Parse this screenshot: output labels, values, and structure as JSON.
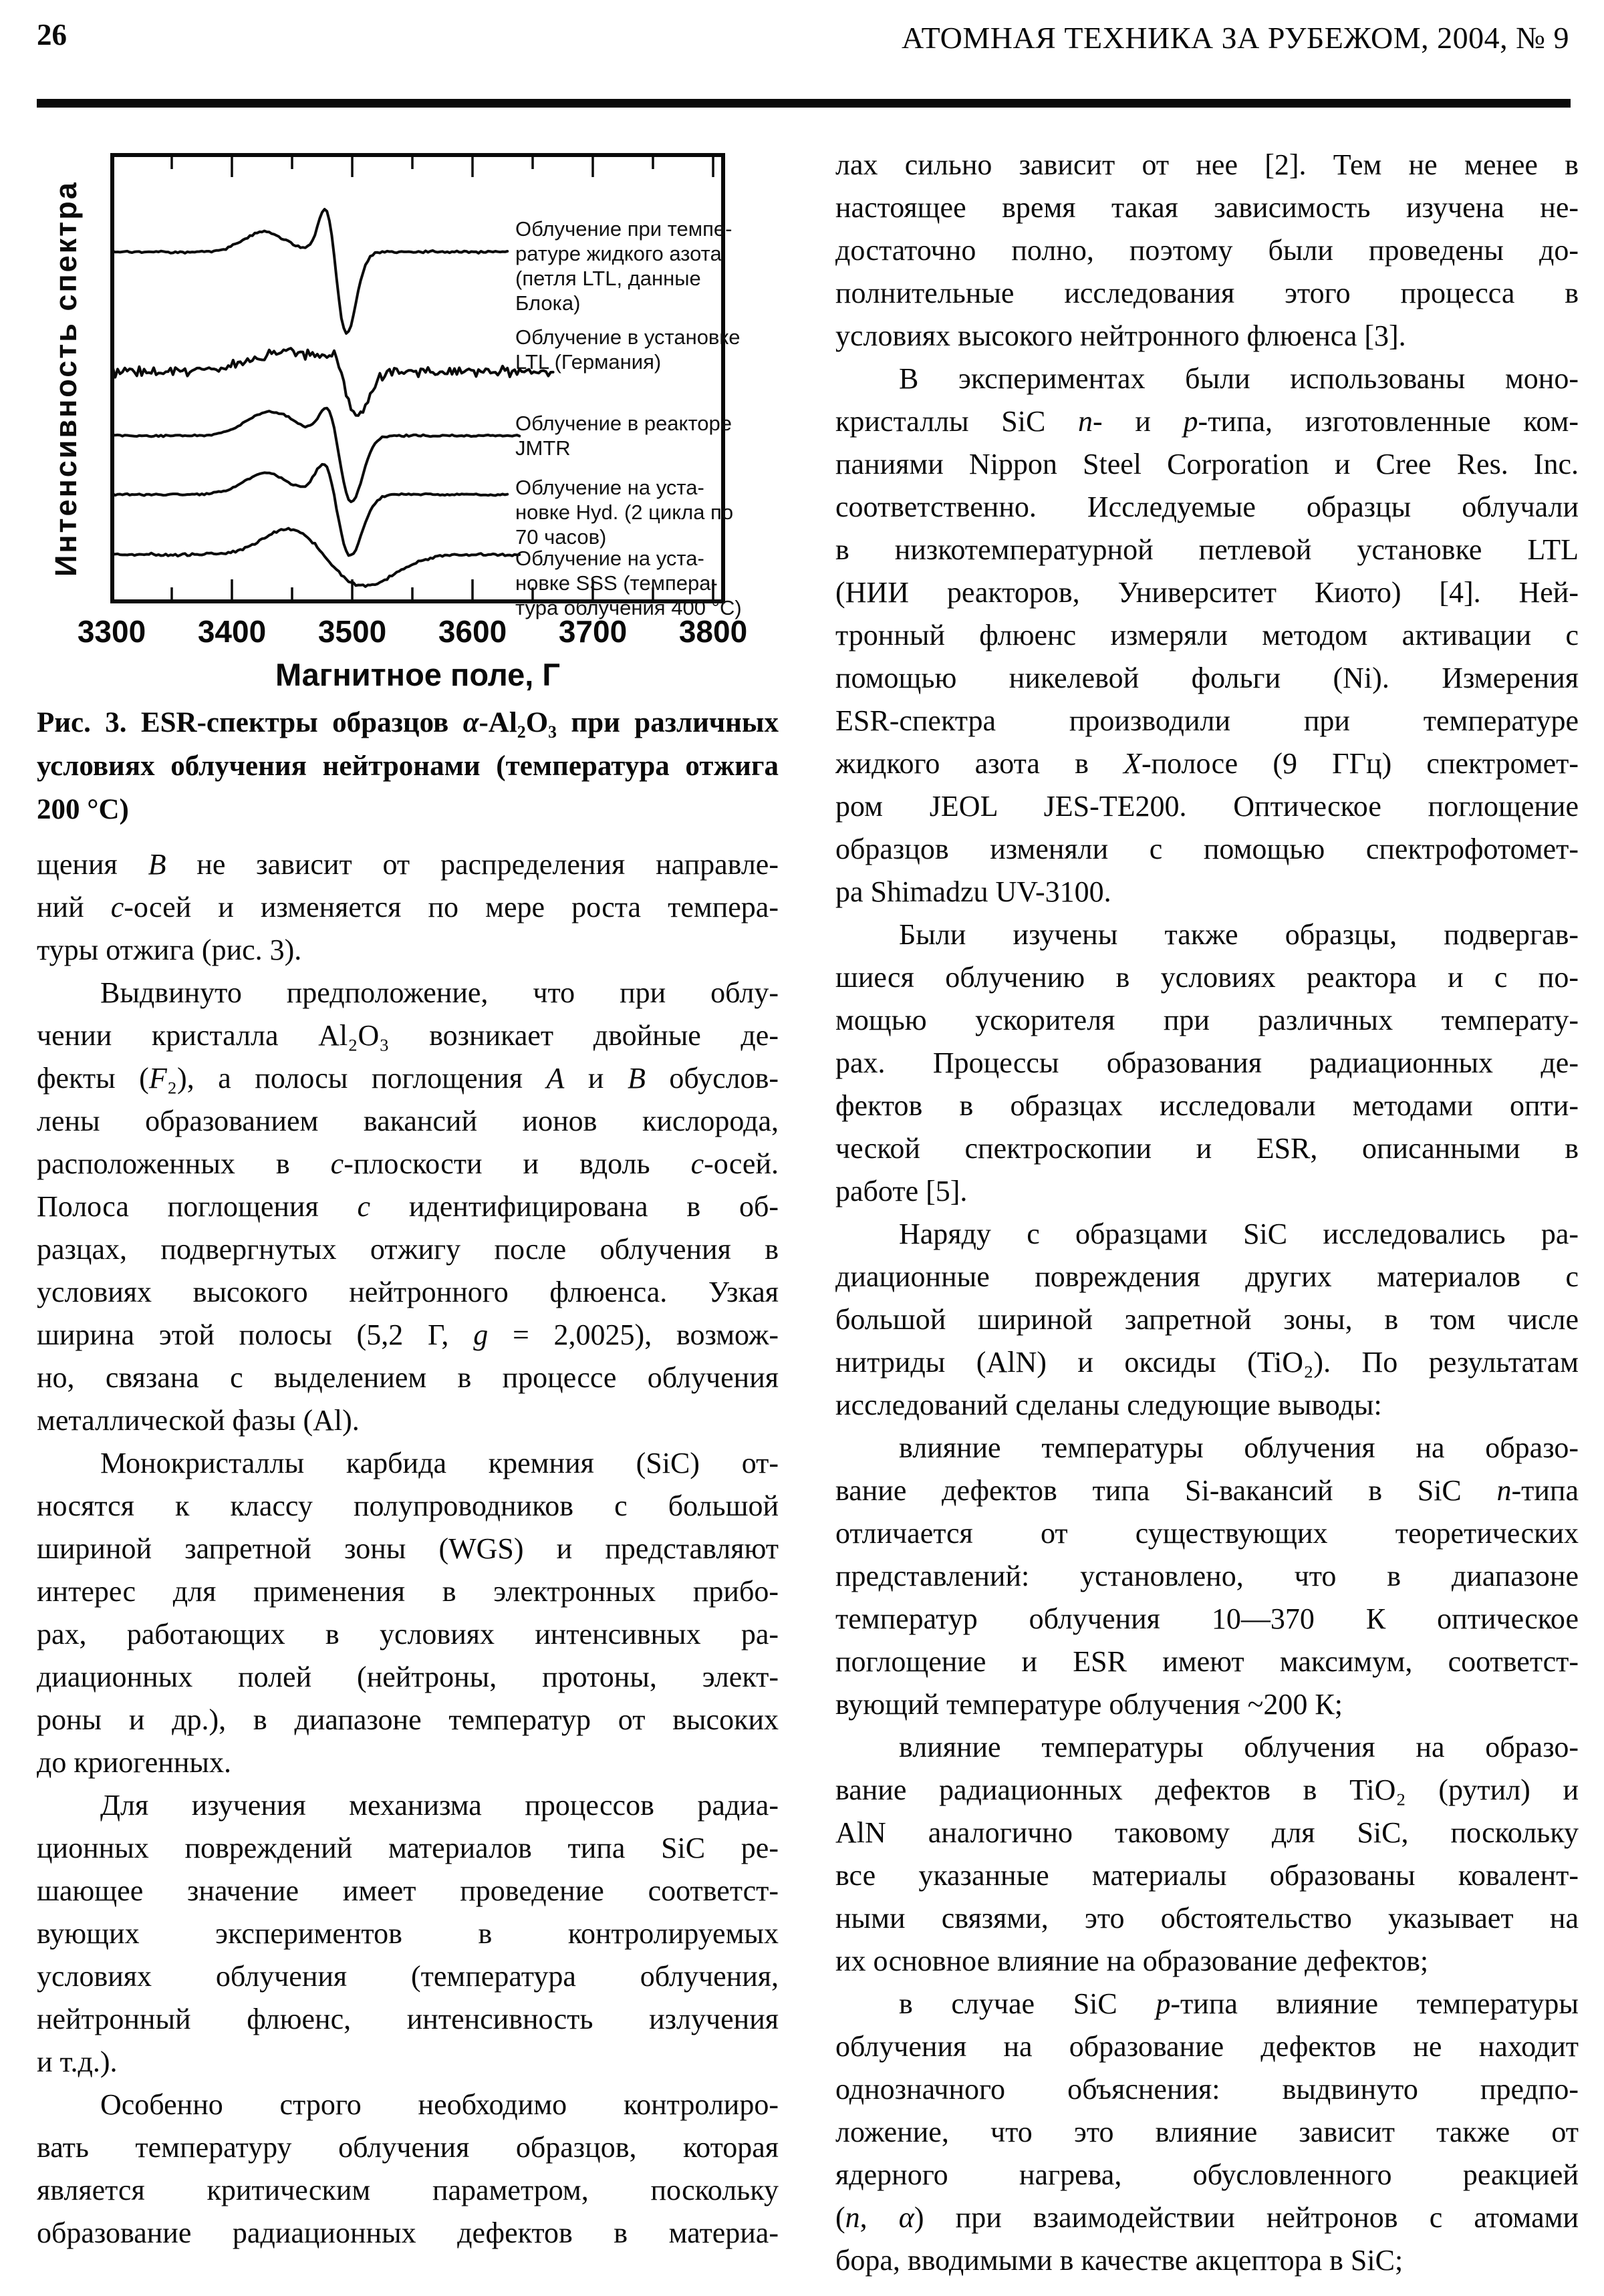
{
  "header": {
    "page_number": "26",
    "journal": "АТОМНАЯ ТЕХНИКА ЗА РУБЕЖОМ, 2004, № 9"
  },
  "figure": {
    "y_axis_label": "Интенсивность спектра",
    "x_axis_label": "Магнитное поле, Г",
    "caption_lines": [
      "Рис. 3. ESR-спектры образцов *α*-Al₂O₃ при различных",
      "условиях облучения нейтронами (температура отжига",
      "200 °C)"
    ]
  },
  "chart_data": {
    "type": "line",
    "title": "",
    "xlabel": "Магнитное поле, Г",
    "ylabel": "Интенсивность спектра",
    "xlim": [
      3300,
      3800
    ],
    "x_tick_labels": [
      "3300",
      "3400",
      "3500",
      "3600",
      "3700",
      "3800"
    ],
    "minor_tick_step": 50,
    "grid": false,
    "legend_position": "right-inside",
    "series": [
      {
        "name": "Облучение при температуре жидкого азота (петля LTL, данные Блока)",
        "label_lines": [
          "Облучение при темпе-",
          "ратуре жидкого азота",
          "(петля LTL, данные",
          "Блока)"
        ],
        "baseline": 152,
        "bump": {
          "center": 3427,
          "width": 17,
          "amp": 30
        },
        "peak": {
          "center": 3487,
          "width": 7,
          "amp_up": 92,
          "amp_down": 132,
          "sep": 7
        },
        "noise": 2.2,
        "x_end": 3630
      },
      {
        "name": "Облучение в установке LTL (Германия)",
        "label_lines": [
          "Облучение в установке",
          "LTL (Германия)"
        ],
        "baseline": 331,
        "bump": {
          "center": 3445,
          "width": 30,
          "amp": 30
        },
        "peak": {
          "center": 3495,
          "width": 8,
          "amp_up": 28,
          "amp_down": 76,
          "sep": 8
        },
        "noise": 9,
        "x_end": 3668
      },
      {
        "name": "Облучение в реакторе JMTR",
        "label_lines": [
          "Облучение в реакторе",
          "JMTR"
        ],
        "baseline": 427,
        "bump": {
          "center": 3432,
          "width": 20,
          "amp": 36
        },
        "peak": {
          "center": 3490,
          "width": 8,
          "amp_up": 60,
          "amp_down": 106,
          "sep": 8
        },
        "noise": 1.8,
        "x_end": 3640
      },
      {
        "name": "Облучение на установке Hyd. (2 цикла по 70 часов)",
        "label_lines": [
          "Облучение на уста-",
          "новке Hyd. (2 цикла по",
          "70 часов)"
        ],
        "baseline": 515,
        "bump": {
          "center": 3428,
          "width": 18,
          "amp": 32
        },
        "peak": {
          "center": 3488,
          "width": 9,
          "amp_up": 73,
          "amp_down": 103,
          "sep": 8
        },
        "noise": 1.8,
        "x_end": 3630
      },
      {
        "name": "Облучение на установке SSS (температура облучения 400 °C)",
        "label_lines": [
          "Облучение на уста-",
          "новке SSS (темпера-",
          "тура облучения 400 °C)"
        ],
        "baseline": 605,
        "bump": {
          "center": 3452,
          "width": 24,
          "amp": 44
        },
        "peak": {
          "center": 3507,
          "width": 22,
          "amp_up": 0,
          "amp_down": 50,
          "sep": 0
        },
        "noise": 2.5,
        "x_end": 3640
      }
    ]
  },
  "columns": {
    "left": {
      "paragraphs": [
        {
          "indent": false,
          "open_end": false,
          "lines": [
            "щения *B* не зависит от распределения направле-",
            "ний *c*-осей и изменяется по мере роста темпера-",
            "туры отжига (рис. 3)."
          ]
        },
        {
          "indent": true,
          "open_end": false,
          "lines": [
            "Выдвинуто предположение, что при облу-",
            "чении кристалла Al₂O₃ возникает двойные де-",
            "фекты (*F*₂), а полосы поглощения *A* и *B* обуслов-",
            "лены образованием вакансий ионов кислорода,",
            "расположенных в *c*-плоскости и вдоль *c*-осей.",
            "Полоса поглощения *c* идентифицирована в об-",
            "разцах, подвергнутых отжигу после облучения в",
            "условиях высокого нейтронного флюенса. Узкая",
            "ширина этой полосы (5,2 Г, *g* = 2,0025), возмож-",
            "но, связана с выделением в процессе облучения",
            "металлической фазы (Al)."
          ]
        },
        {
          "indent": true,
          "open_end": false,
          "lines": [
            "Монокристаллы карбида кремния (SiC) от-",
            "носятся к классу полупроводников с большой",
            "шириной запретной зоны (WGS) и представляют",
            "интерес для применения в электронных прибо-",
            "рах, работающих в условиях интенсивных ра-",
            "диационных полей (нейтроны, протоны, элект-",
            "роны и др.), в диапазоне температур от высоких",
            "до криогенных."
          ]
        },
        {
          "indent": true,
          "open_end": false,
          "lines": [
            "Для изучения механизма процессов радиа-",
            "ционных повреждений материалов типа SiC ре-",
            "шающее значение имеет проведение соответст-",
            "вующих экспериментов в контролируемых",
            "условиях облучения (температура облучения,",
            "нейтронный флюенс, интенсивность излучения",
            "и т.д.)."
          ]
        },
        {
          "indent": true,
          "open_end": true,
          "lines": [
            "Особенно строго необходимо контролиро-",
            "вать температуру облучения образцов, которая",
            "является критическим параметром, поскольку",
            "образование радиационных дефектов в материа-"
          ]
        }
      ]
    },
    "right": {
      "paragraphs": [
        {
          "indent": false,
          "open_end": false,
          "lines": [
            "лах сильно зависит от нее [2]. Тем не менее в",
            "настоящее время такая зависимость изучена не-",
            "достаточно полно, поэтому были проведены до-",
            "полнительные исследования этого процесса в",
            "условиях высокого нейтронного флюенса [3]."
          ]
        },
        {
          "indent": true,
          "open_end": false,
          "lines": [
            "В экспериментах были использованы моно-",
            "кристаллы SiC *n*- и *p*-типа, изготовленные ком-",
            "паниями Nippon Steel Corporation и Cree Res. Inc.",
            "соответственно. Исследуемые образцы облучали",
            "в низкотемпературной петлевой установке LTL",
            "(НИИ реакторов, Университет Киото) [4]. Ней-",
            "тронный флюенс измеряли методом активации с",
            "помощью никелевой фольги (Ni). Измерения",
            "ESR-спектра производили при температуре",
            "жидкого азота в *X*-полосе (9 ГГц) спектромет-",
            "ром JEOL JES-TE200. Оптическое поглощение",
            "образцов изменяли с помощью спектрофотомет-",
            "ра Shimadzu UV-3100."
          ]
        },
        {
          "indent": true,
          "open_end": false,
          "lines": [
            "Были изучены также образцы, подвергав-",
            "шиеся облучению в условиях реактора и с по-",
            "мощью ускорителя при различных температу-",
            "рах. Процессы образования радиационных де-",
            "фектов в образцах исследовали методами опти-",
            "ческой спектроскопии и ESR, описанными в",
            "работе [5]."
          ]
        },
        {
          "indent": true,
          "open_end": false,
          "lines": [
            "Наряду с образцами SiC исследовались ра-",
            "диационные повреждения других материалов с",
            "большой шириной запретной зоны, в том числе",
            "нитриды (AlN) и оксиды (TiO₂). По результатам",
            "исследований сделаны следующие выводы:"
          ]
        },
        {
          "indent": true,
          "open_end": false,
          "lines": [
            "влияние температуры облучения на образо-",
            "вание дефектов типа Si-вакансий в SiC *n*-типа",
            "отличается от существующих теоретических",
            "представлений: установлено, что в диапазоне",
            "температур облучения 10—370 К оптическое",
            "поглощение и ESR имеют максимум, соответст-",
            "вующий температуре облучения ~200 К;"
          ]
        },
        {
          "indent": true,
          "open_end": false,
          "lines": [
            "влияние температуры облучения на образо-",
            "вание радиационных дефектов в TiO₂ (рутил) и",
            "AlN аналогично таковому для SiC, поскольку",
            "все указанные материалы образованы ковалент-",
            "ными связями, это обстоятельство указывает на",
            "их основное влияние на образование дефектов;"
          ]
        },
        {
          "indent": true,
          "open_end": false,
          "lines": [
            "в случае SiC *p*-типа влияние температуры",
            "облучения на образование дефектов не находит",
            "однозначного объяснения: выдвинуто предпо-",
            "ложение, что это влияние зависит также от",
            "ядерного нагрева, обусловленного реакцией",
            "(*n*, *α*) при взаимодействии нейтронов с атомами",
            "бора, вводимыми в качестве акцептора в SiC;"
          ]
        }
      ]
    }
  }
}
